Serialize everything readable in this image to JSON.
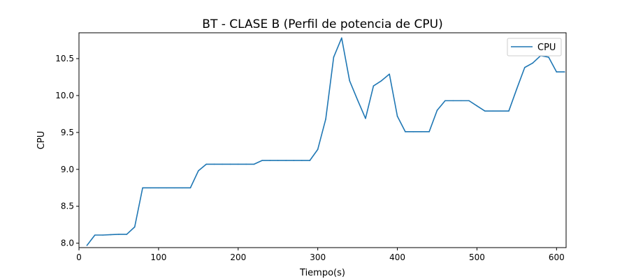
{
  "chart_data": {
    "type": "line",
    "title": "BT - CLASE B (Perfil de potencia de CPU)",
    "xlabel": "Tiempo(s)",
    "ylabel": "CPU",
    "xlim": [
      0,
      612
    ],
    "ylim": [
      7.94,
      10.85
    ],
    "xticks": [
      0,
      100,
      200,
      300,
      400,
      500,
      600
    ],
    "yticks": [
      8.0,
      8.5,
      9.0,
      9.5,
      10.0,
      10.5
    ],
    "xtick_labels": [
      "0",
      "100",
      "200",
      "300",
      "400",
      "500",
      "600"
    ],
    "ytick_labels": [
      "8.0",
      "8.5",
      "9.0",
      "9.5",
      "10.0",
      "10.5"
    ],
    "grid": false,
    "legend": {
      "position": "top-right",
      "entries": [
        "CPU"
      ]
    },
    "series": [
      {
        "name": "CPU",
        "color": "#1f77b4",
        "x": [
          10,
          20,
          30,
          40,
          50,
          60,
          70,
          80,
          90,
          100,
          110,
          120,
          130,
          140,
          150,
          160,
          170,
          180,
          190,
          200,
          210,
          220,
          230,
          240,
          250,
          260,
          270,
          280,
          290,
          300,
          310,
          320,
          330,
          340,
          350,
          360,
          370,
          380,
          390,
          400,
          410,
          420,
          430,
          440,
          450,
          460,
          470,
          480,
          490,
          500,
          510,
          520,
          530,
          540,
          550,
          560,
          570,
          580,
          590,
          600,
          610
        ],
        "values": [
          7.97,
          8.11,
          8.11,
          8.115,
          8.12,
          8.12,
          8.22,
          8.75,
          8.75,
          8.75,
          8.75,
          8.75,
          8.75,
          8.75,
          8.98,
          9.07,
          9.07,
          9.07,
          9.07,
          9.07,
          9.07,
          9.07,
          9.12,
          9.12,
          9.12,
          9.12,
          9.12,
          9.12,
          9.12,
          9.27,
          9.68,
          10.52,
          10.78,
          10.2,
          9.94,
          9.69,
          10.13,
          10.2,
          10.29,
          9.72,
          9.51,
          9.51,
          9.51,
          9.51,
          9.8,
          9.93,
          9.93,
          9.93,
          9.93,
          9.86,
          9.79,
          9.79,
          9.79,
          9.79,
          10.09,
          10.38,
          10.44,
          10.54,
          10.52,
          10.32,
          10.32
        ]
      }
    ]
  }
}
